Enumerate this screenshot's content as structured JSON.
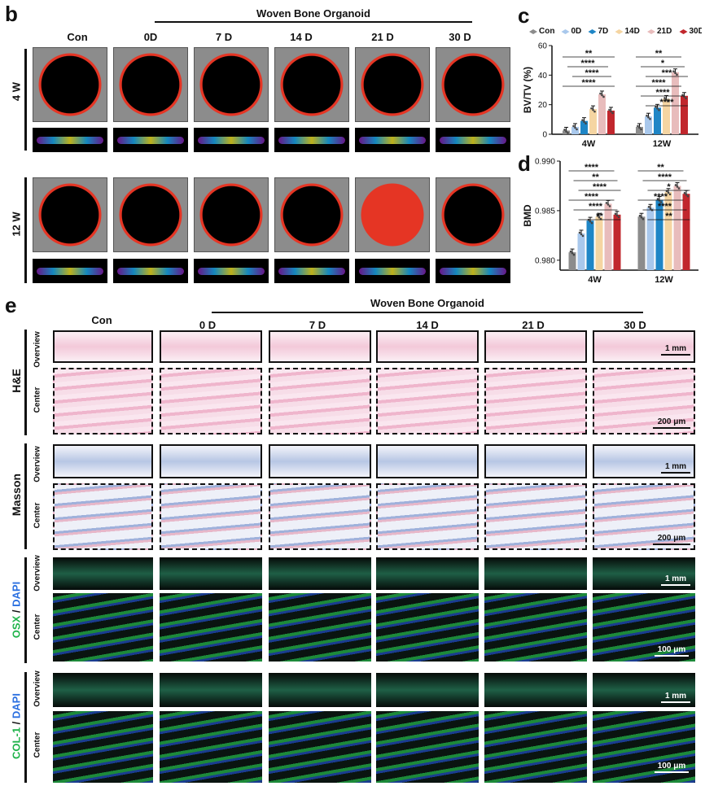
{
  "panels": {
    "b": "b",
    "c": "c",
    "d": "d",
    "e": "e"
  },
  "group_title": "Woven Bone Organoid",
  "columns_b": [
    "Con",
    "0D",
    "7 D",
    "14 D",
    "21 D",
    "30 D"
  ],
  "rows_b": [
    "4 W",
    "12 W"
  ],
  "columns_e": [
    "Con",
    "0 D",
    "7 D",
    "14 D",
    "21 D",
    "30 D"
  ],
  "stains": [
    {
      "name": "H&E",
      "scale_overview": "1 mm",
      "scale_center": "200 μm"
    },
    {
      "name": "Masson",
      "scale_overview": "1 mm",
      "scale_center": "200 μm"
    },
    {
      "name_a": "OSX",
      "name_sep": " / ",
      "name_b": "DAPI",
      "scale_overview": "1 mm",
      "scale_center": "100 μm"
    },
    {
      "name_a": "COL-1",
      "name_sep": " / ",
      "name_b": "DAPI",
      "scale_overview": "1 mm",
      "scale_center": "100 μm"
    }
  ],
  "sub_rows": [
    "Overview",
    "Center"
  ],
  "colors": {
    "Con": "#8c8c8c",
    "0D": "#a9c8ec",
    "7D": "#1f86c6",
    "14D": "#f5d5a2",
    "21D": "#e8bcbc",
    "30D": "#c1272d",
    "scan_red": "#e53524",
    "osx_green": "#2fd14a",
    "dapi_blue": "#2a6fe0"
  },
  "chart_data": [
    {
      "type": "bar",
      "panel": "c",
      "categories": [
        "4W",
        "12W"
      ],
      "series": [
        {
          "name": "Con",
          "values": [
            2.5,
            5
          ]
        },
        {
          "name": "0D",
          "values": [
            5,
            12
          ]
        },
        {
          "name": "7D",
          "values": [
            9,
            18
          ]
        },
        {
          "name": "14D",
          "values": [
            17,
            24
          ]
        },
        {
          "name": "21D",
          "values": [
            27,
            42
          ]
        },
        {
          "name": "30D",
          "values": [
            16,
            26
          ]
        }
      ],
      "ylabel": "BV/TV (%)",
      "ylim": [
        0,
        60
      ],
      "yticks": [
        0,
        20,
        40,
        60
      ],
      "significance": {
        "4W": [
          "**",
          "****",
          "****",
          "****"
        ],
        "12W": [
          "**",
          "*",
          "***",
          "****",
          "****",
          "****"
        ]
      },
      "legend": "top"
    },
    {
      "type": "bar",
      "panel": "d",
      "categories": [
        "4W",
        "12W"
      ],
      "series": [
        {
          "name": "Con",
          "values": [
            0.9808,
            0.9844
          ]
        },
        {
          "name": "0D",
          "values": [
            0.9827,
            0.9853
          ]
        },
        {
          "name": "7D",
          "values": [
            0.984,
            0.9861
          ]
        },
        {
          "name": "14D",
          "values": [
            0.9844,
            0.9869
          ]
        },
        {
          "name": "21D",
          "values": [
            0.9857,
            0.9875
          ]
        },
        {
          "name": "30D",
          "values": [
            0.9846,
            0.9867
          ]
        }
      ],
      "ylabel": "BMD",
      "ylim": [
        0.979,
        0.99
      ],
      "yticks": [
        0.98,
        0.985,
        0.99
      ],
      "yticklabels": [
        "0.980",
        "0.985",
        "0.990"
      ],
      "significance": {
        "4W": [
          "****",
          "**",
          "****",
          "****",
          "****",
          "**"
        ],
        "12W": [
          "**",
          "****",
          "*",
          "****",
          "****",
          "**"
        ]
      }
    }
  ]
}
